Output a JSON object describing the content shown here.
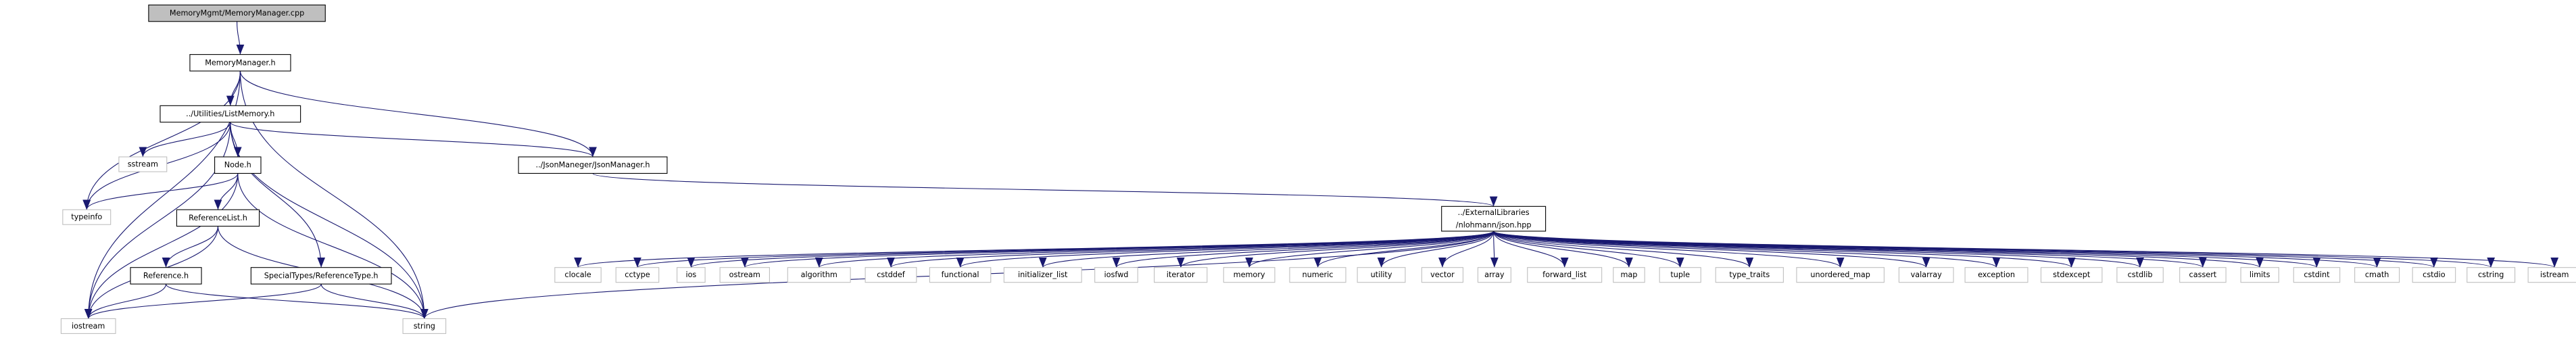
{
  "nodes": [
    {
      "lines": [
        "MemoryMgmt/MemoryManager.cpp"
      ]
    },
    {
      "lines": [
        "MemoryManager.h"
      ]
    },
    {
      "lines": [
        "../Utilities/ListMemory.h"
      ]
    },
    {
      "lines": [
        "../JsonManeger/JsonManager.h"
      ]
    },
    {
      "lines": [
        "sstream"
      ]
    },
    {
      "lines": [
        "Node.h"
      ]
    },
    {
      "lines": [
        "typeinfo"
      ]
    },
    {
      "lines": [
        "ReferenceList.h"
      ]
    },
    {
      "lines": [
        "Reference.h"
      ]
    },
    {
      "lines": [
        "SpecialTypes/ReferenceType.h"
      ]
    },
    {
      "lines": [
        "iostream"
      ]
    },
    {
      "lines": [
        "string"
      ]
    },
    {
      "lines": [
        "../ExternalLibraries",
        "/nlohmann/json.hpp"
      ]
    },
    {
      "lines": [
        "clocale"
      ]
    },
    {
      "lines": [
        "cctype"
      ]
    },
    {
      "lines": [
        "ios"
      ]
    },
    {
      "lines": [
        "ostream"
      ]
    },
    {
      "lines": [
        "algorithm"
      ]
    },
    {
      "lines": [
        "cstddef"
      ]
    },
    {
      "lines": [
        "functional"
      ]
    },
    {
      "lines": [
        "initializer_list"
      ]
    },
    {
      "lines": [
        "iosfwd"
      ]
    },
    {
      "lines": [
        "iterator"
      ]
    },
    {
      "lines": [
        "memory"
      ]
    },
    {
      "lines": [
        "numeric"
      ]
    },
    {
      "lines": [
        "utility"
      ]
    },
    {
      "lines": [
        "vector"
      ]
    },
    {
      "lines": [
        "array"
      ]
    },
    {
      "lines": [
        "forward_list"
      ]
    },
    {
      "lines": [
        "map"
      ]
    },
    {
      "lines": [
        "tuple"
      ]
    },
    {
      "lines": [
        "type_traits"
      ]
    },
    {
      "lines": [
        "unordered_map"
      ]
    },
    {
      "lines": [
        "valarray"
      ]
    },
    {
      "lines": [
        "exception"
      ]
    },
    {
      "lines": [
        "stdexcept"
      ]
    },
    {
      "lines": [
        "cstdlib"
      ]
    },
    {
      "lines": [
        "cassert"
      ]
    },
    {
      "lines": [
        "limits"
      ]
    },
    {
      "lines": [
        "cstdint"
      ]
    },
    {
      "lines": [
        "cmath"
      ]
    },
    {
      "lines": [
        "cstdio"
      ]
    },
    {
      "lines": [
        "cstring"
      ]
    },
    {
      "lines": [
        "istream"
      ]
    }
  ]
}
